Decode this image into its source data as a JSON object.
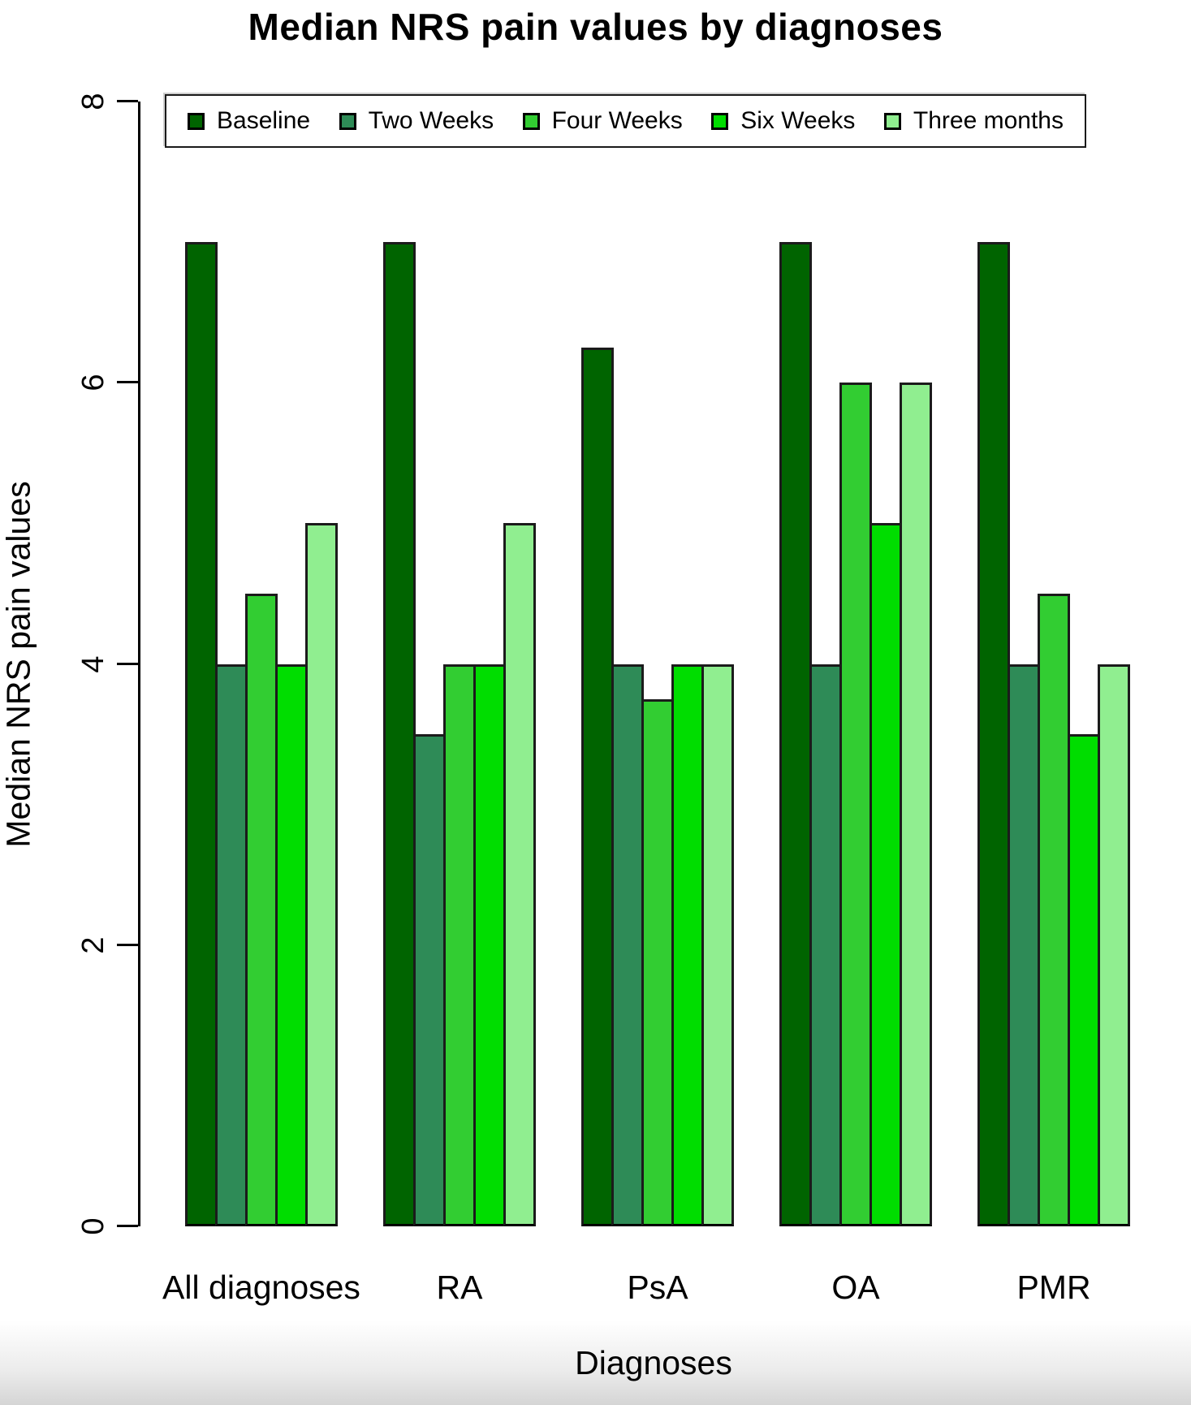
{
  "title": "Median NRS pain values by diagnoses",
  "chart_data": {
    "type": "bar",
    "title": "Median NRS pain values by diagnoses",
    "xlabel": "Diagnoses",
    "ylabel": "Median NRS pain values",
    "categories": [
      "All diagnoses",
      "RA",
      "PsA",
      "OA",
      "PMR"
    ],
    "series": [
      {
        "name": "Baseline",
        "color": "#006400",
        "values": [
          7,
          7,
          6.25,
          7,
          7
        ]
      },
      {
        "name": "Two Weeks",
        "color": "#2E8B57",
        "values": [
          4,
          3.5,
          4,
          4,
          4
        ]
      },
      {
        "name": "Four Weeks",
        "color": "#32CD32",
        "values": [
          4.5,
          4,
          3.75,
          6,
          4.5
        ]
      },
      {
        "name": "Six Weeks",
        "color": "#00DD00",
        "values": [
          4,
          4,
          4,
          5,
          3.5
        ]
      },
      {
        "name": "Three months",
        "color": "#90EE90",
        "values": [
          5,
          5,
          4,
          6,
          4
        ]
      }
    ],
    "ylim": [
      0,
      8
    ],
    "yticks": [
      0,
      2,
      4,
      6,
      8
    ],
    "grid": false,
    "legend_position": "top-inside-box"
  },
  "colors": {
    "axis": "#000000",
    "bar_border": "#1b1b1b",
    "background": "#ffffff",
    "footer_strip": "#d5d5d5"
  }
}
